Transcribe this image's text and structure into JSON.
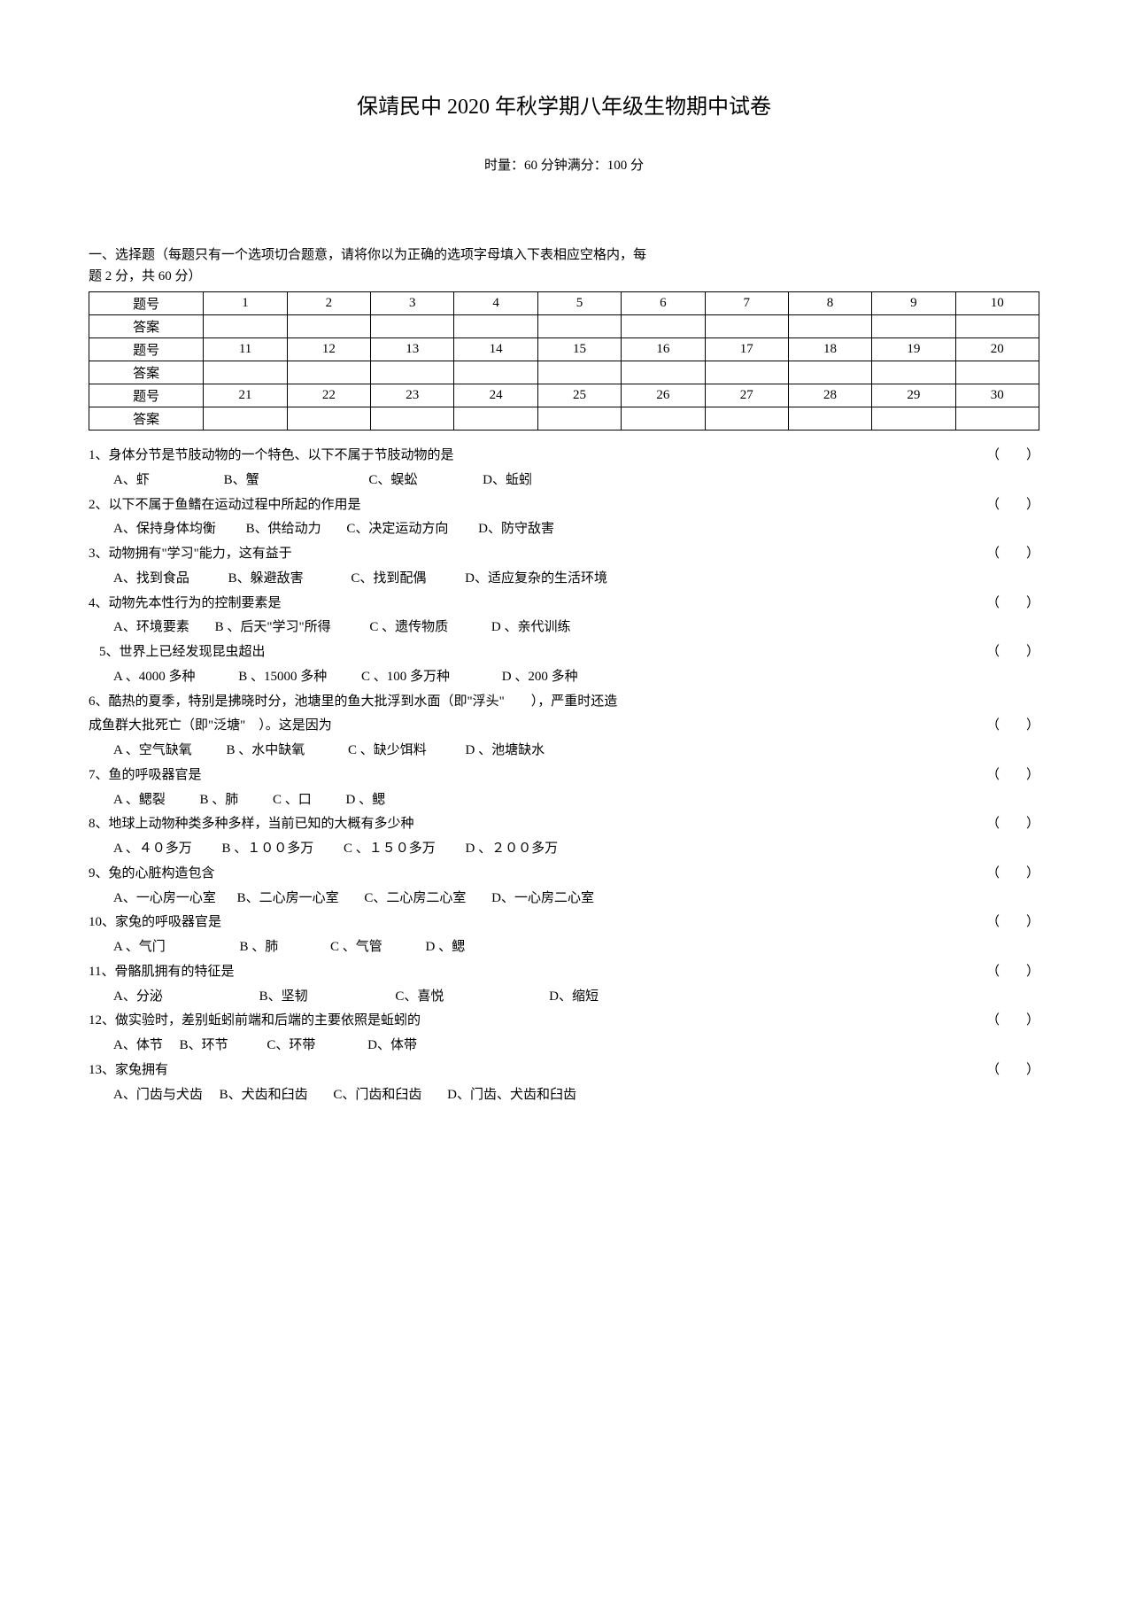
{
  "title": "保靖民中 2020 年秋学期八年级生物期中试卷",
  "subtitle": "时量：60 分钟满分：100 分",
  "instructions_line1": "一、选择题（每题只有一个选项切合题意，请将你以为正确的选项字母填入下表相应空格内，每",
  "instructions_line2": "题 2 分，共 60 分）",
  "table": {
    "label_question": "题号",
    "label_answer": "答案",
    "rows": [
      [
        "1",
        "2",
        "3",
        "4",
        "5",
        "6",
        "7",
        "8",
        "9",
        "10"
      ],
      [
        "11",
        "12",
        "13",
        "14",
        "15",
        "16",
        "17",
        "18",
        "19",
        "20"
      ],
      [
        "21",
        "22",
        "23",
        "24",
        "25",
        "26",
        "27",
        "28",
        "29",
        "30"
      ]
    ]
  },
  "paren_open": "（",
  "paren_close": "）",
  "q1": {
    "text": "1、身体分节是节肢动物的一个特色、以下不属于节肢动物的是",
    "a": "A、虾",
    "b": "B、蟹",
    "c": "C、蜈蚣",
    "d": "D、蚯蚓"
  },
  "q2": {
    "text": "2、以下不属于鱼鳍在运动过程中所起的作用是",
    "a": "A、保持身体均衡",
    "b": "B、供给动力",
    "c": "C、决定运动方向",
    "d": "D、防守敌害"
  },
  "q3": {
    "text": "3、动物拥有\"学习\"能力，这有益于",
    "a": "A、找到食品",
    "b": "B、躲避敌害",
    "c": "C、找到配偶",
    "d": "D、适应复杂的生活环境"
  },
  "q4": {
    "text": "4、动物先本性行为的控制要素是",
    "a": "A、环境要素",
    "b": "B 、后天\"学习\"所得",
    "c": "C 、遗传物质",
    "d": "D 、亲代训练"
  },
  "q5": {
    "text": "5、世界上已经发现昆虫超出",
    "a": "A 、4000 多种",
    "b": "B 、15000 多种",
    "c": "C 、100 多万种",
    "d": "D 、200 多种"
  },
  "q6": {
    "line1": "6、酷热的夏季，特别是拂晓时分，池塘里的鱼大批浮到水面（即\"浮头\"　　），严重时还造",
    "line2": "成鱼群大批死亡（即\"泛塘\"　）。这是因为",
    "a": "A 、空气缺氧",
    "b": "B 、水中缺氧",
    "c": "C 、缺少饵料",
    "d": "D 、池塘缺水"
  },
  "q7": {
    "text": "7、鱼的呼吸器官是",
    "a": "A 、鳃裂",
    "b": "B 、肺",
    "c": "C 、口",
    "d": "D 、鳃"
  },
  "q8": {
    "text": "8、地球上动物种类多种多样，当前已知的大概有多少种",
    "a": "A 、４０多万",
    "b": "B 、１００多万",
    "c": "C 、１５０多万",
    "d": "D 、２００多万"
  },
  "q9": {
    "text": "9、兔的心脏构造包含",
    "a": "A、一心房一心室",
    "b": "B、二心房一心室",
    "c": "C、二心房二心室",
    "d": "D、一心房二心室"
  },
  "q10": {
    "text": "10、家兔的呼吸器官是",
    "a": "A 、气门",
    "b": "B 、肺",
    "c": "C 、气管",
    "d": "D 、鳃"
  },
  "q11": {
    "text": "11、骨骼肌拥有的特征是",
    "a": "A、分泌",
    "b": "B、坚韧",
    "c": "C、喜悦",
    "d": "D、缩短"
  },
  "q12": {
    "text": "12、做实验时，差别蚯蚓前端和后端的主要依照是蚯蚓的",
    "a": "A、体节",
    "b": "B、环节",
    "c": "C、环带",
    "d": "D、体带"
  },
  "q13": {
    "text": "13、家兔拥有",
    "a": "A、门齿与犬齿",
    "b": "B、犬齿和臼齿",
    "c": "C、门齿和臼齿",
    "d": "D、门齿、犬齿和臼齿"
  }
}
